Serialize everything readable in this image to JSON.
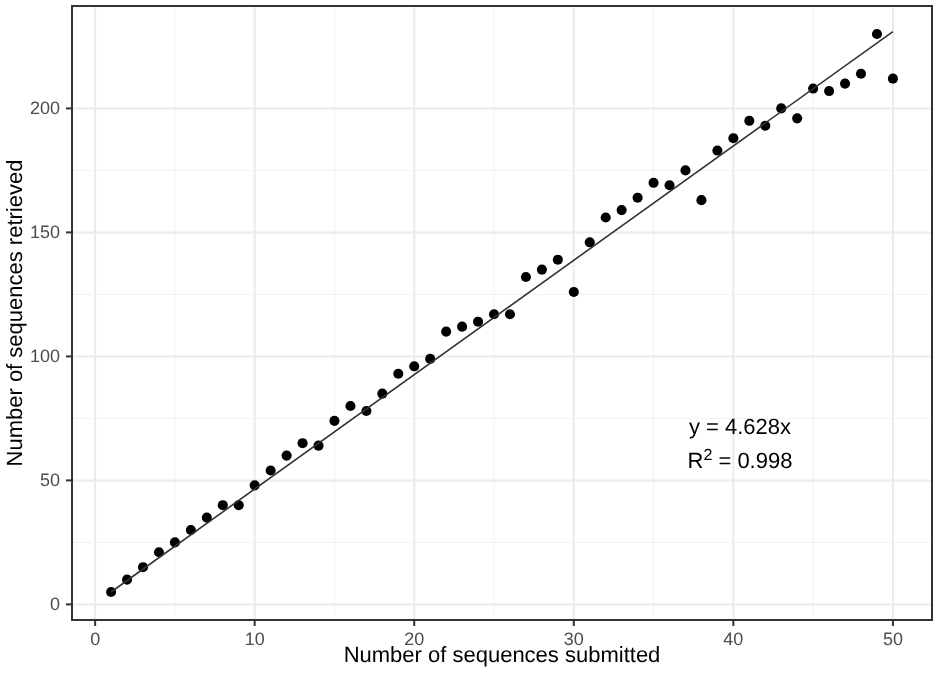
{
  "chart_data": {
    "type": "scatter",
    "xlabel": "Number of sequences submitted",
    "ylabel": "Number of sequences retrieved",
    "xlim": [
      -1.45,
      52.45
    ],
    "xticks": [
      0,
      10,
      20,
      30,
      40,
      50
    ],
    "ylim": [
      -6.3,
      241.3
    ],
    "yticks": [
      0,
      50,
      100,
      150,
      200
    ],
    "grid": true,
    "annotations": [
      "y = 4.628x",
      "R$^{2}$ = 0.998"
    ],
    "series": [
      {
        "marker": "circle",
        "color": "#000000",
        "x": [
          1,
          2,
          3,
          4,
          5,
          6,
          7,
          8,
          9,
          10,
          11,
          12,
          13,
          14,
          15,
          16,
          17,
          18,
          19,
          20,
          21,
          22,
          23,
          24,
          25,
          26,
          27,
          28,
          29,
          30,
          31,
          32,
          33,
          34,
          35,
          36,
          37,
          38,
          39,
          40,
          41,
          42,
          43,
          44,
          45,
          46,
          47,
          48,
          49,
          50
        ],
        "values": [
          5,
          10,
          15,
          21,
          25,
          30,
          35,
          40,
          40,
          48,
          54,
          60,
          65,
          64,
          74,
          80,
          78,
          85,
          93,
          96,
          99,
          110,
          112,
          114,
          117,
          117,
          132,
          135,
          139,
          126,
          146,
          156,
          159,
          164,
          170,
          169,
          175,
          163,
          183,
          188,
          195,
          193,
          200,
          196,
          208,
          207,
          210,
          214,
          230,
          212
        ]
      },
      {
        "type": "line",
        "color": "#333333",
        "x": [
          1,
          50
        ],
        "values": [
          5,
          231
        ],
        "line_style": "solid",
        "marker": "none"
      }
    ]
  }
}
